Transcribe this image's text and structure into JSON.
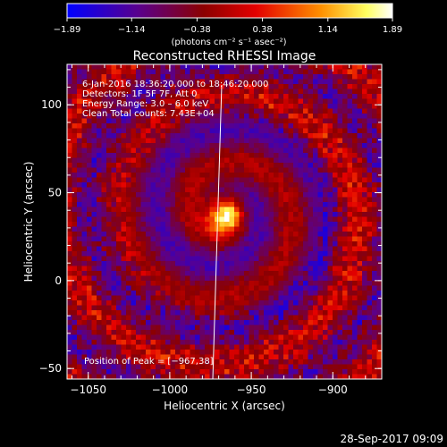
{
  "chart_data": {
    "type": "heatmap",
    "title": "Reconstructed RHESSI Image",
    "xlabel": "Heliocentric X (arcsec)",
    "ylabel": "Heliocentric Y (arcsec)",
    "xlim": [
      -1063,
      -870
    ],
    "ylim": [
      -56,
      123
    ],
    "x_ticks": [
      -1050,
      -1000,
      -950,
      -900
    ],
    "x_tick_labels": [
      "−1050",
      "−1000",
      "−950",
      "−900"
    ],
    "y_ticks": [
      -50,
      0,
      50,
      100
    ],
    "y_tick_labels": [
      "−50",
      "0",
      "50",
      "100"
    ],
    "colorbar": {
      "min": -1.89,
      "max": 1.89,
      "ticks": [
        -1.89,
        -1.14,
        -0.38,
        0.38,
        1.14,
        1.89
      ],
      "tick_labels": [
        "−1.89",
        "−1.14",
        "−0.38",
        "0.38",
        "1.14",
        "1.89"
      ],
      "units": "(photons cm⁻² s⁻¹ asec⁻²)",
      "colors": [
        "#0000ff",
        "#5a008c",
        "#8c0000",
        "#e40000",
        "#ff9000",
        "#ffff60",
        "#ffffff"
      ]
    },
    "annotations": [
      "6‑Jan‑2016 18:36:20.000 to 18:46:20.000",
      "Detectors: 1F 5F 7F, Att 0",
      "Energy Range: 3.0 – 6.0 keV",
      "Clean    Total counts: 7.43E+04"
    ],
    "peak_label": "Position of Peak = [−967,38]",
    "peak": {
      "x": -967,
      "y": 38
    },
    "limb_line": true
  },
  "footer": {
    "timestamp": "28‑Sep‑2017 09:09"
  }
}
